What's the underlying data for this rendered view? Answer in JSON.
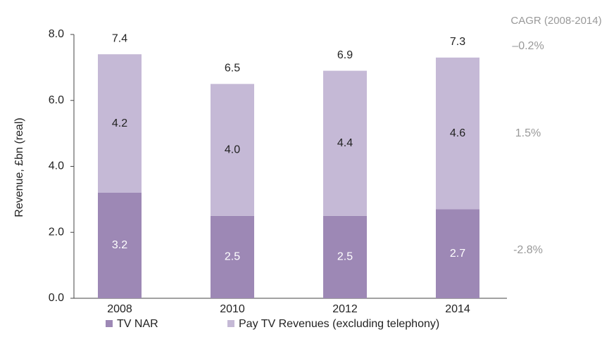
{
  "chart_data": {
    "type": "stacked_bar",
    "ylabel": "Revenue, £bn (real)",
    "categories": [
      "2008",
      "2010",
      "2012",
      "2014"
    ],
    "series": [
      {
        "name": "TV NAR",
        "color": "#9d88b5",
        "values": [
          3.2,
          2.5,
          2.5,
          2.7
        ],
        "value_labels": [
          "3.2",
          "2.5",
          "2.5",
          "2.7"
        ]
      },
      {
        "name": "Pay TV Revenues (excluding telephony)",
        "color": "#c5b9d6",
        "values": [
          4.2,
          4.0,
          4.4,
          4.6
        ],
        "value_labels": [
          "4.2",
          "4.0",
          "4.4",
          "4.6"
        ]
      }
    ],
    "totals": [
      7.4,
      6.5,
      6.9,
      7.3
    ],
    "ylim": [
      0,
      8
    ],
    "yticks": [
      {
        "value": 0,
        "label": "0.0"
      },
      {
        "value": 2,
        "label": "2.0"
      },
      {
        "value": 4,
        "label": "4.0"
      },
      {
        "value": 6,
        "label": "6.0"
      },
      {
        "value": 8,
        "label": "8.0"
      }
    ],
    "cagr": {
      "title": "CAGR (2008-2014)",
      "total": "–0.2%",
      "series": [
        "-2.8%",
        "1.5%"
      ]
    }
  }
}
